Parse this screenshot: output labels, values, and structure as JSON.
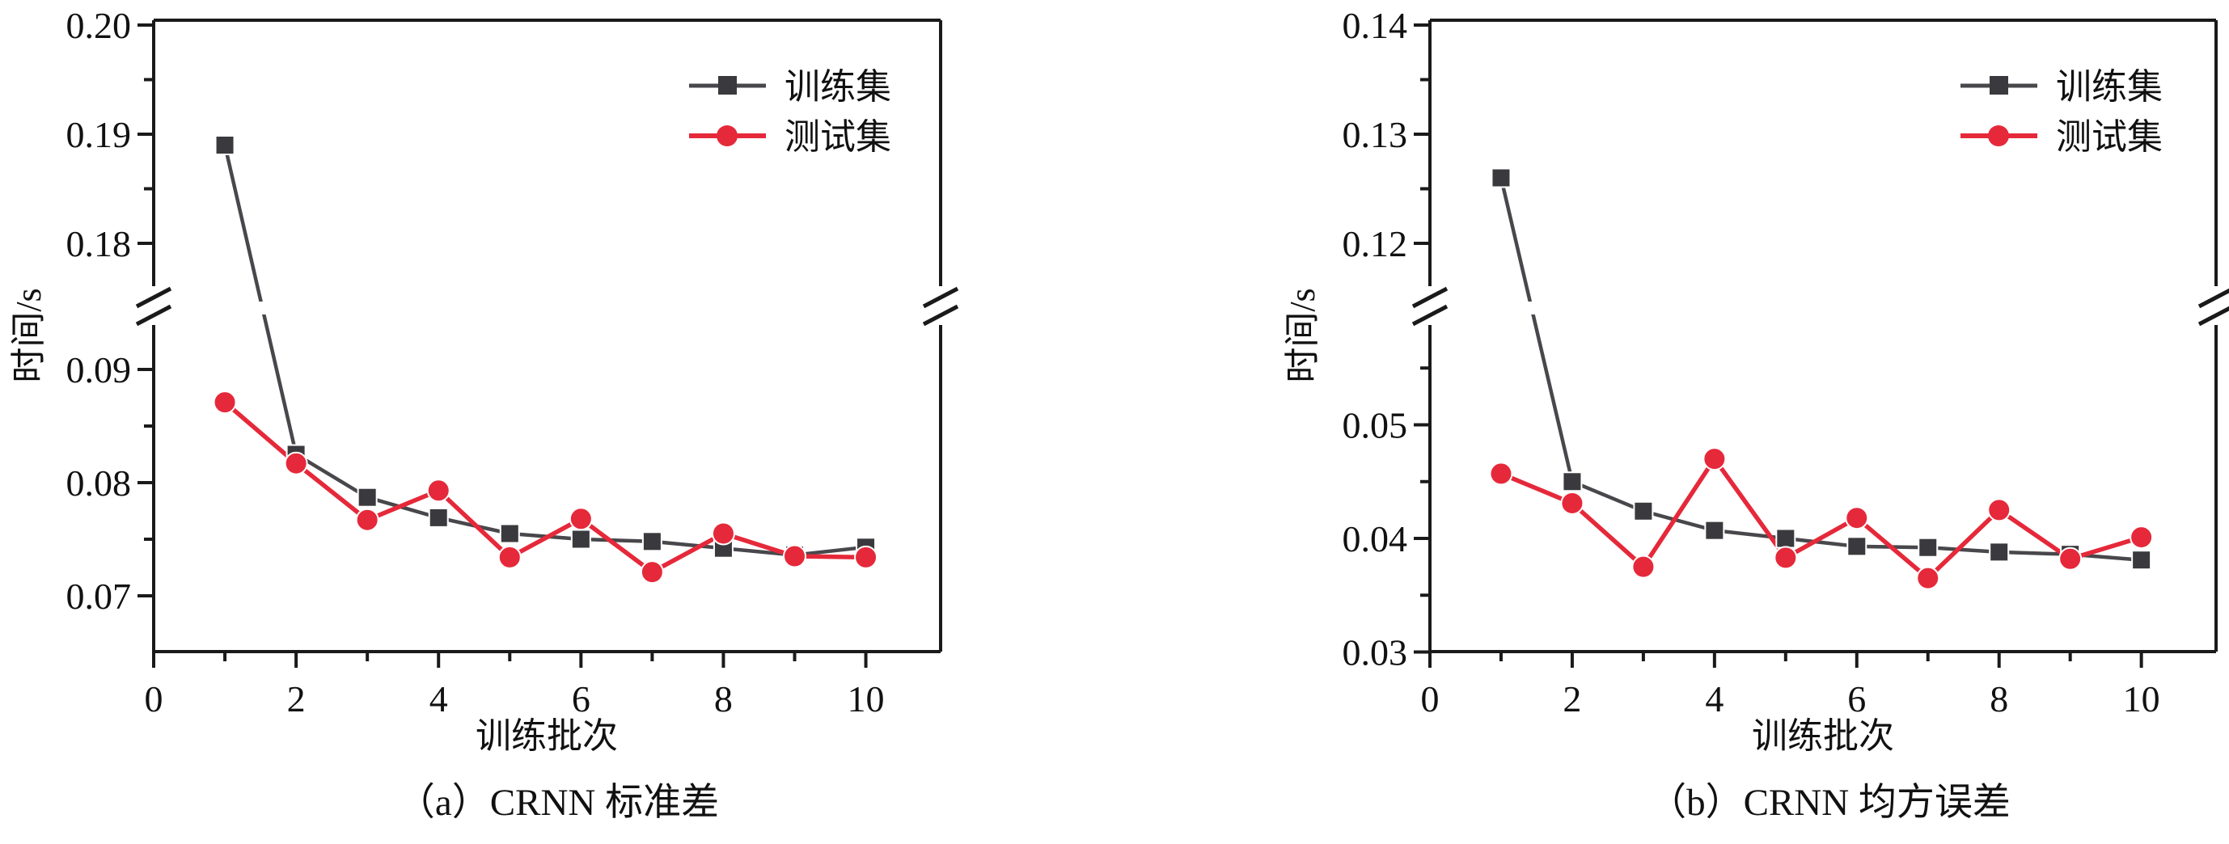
{
  "figure": {
    "background": "#ffffff",
    "axis_color": "#1a1a1a",
    "break_symbol": "double-slash",
    "panel_count": 2
  },
  "chart_data": [
    {
      "type": "line",
      "title": "（a）CRNN 标准差",
      "xlabel": "训练批次",
      "ylabel": "时间/s",
      "legend_position": "top-right",
      "x": [
        1,
        2,
        3,
        4,
        5,
        6,
        7,
        8,
        9,
        10
      ],
      "series": [
        {
          "name": "训练集",
          "marker": "square",
          "color": "#3a3a3e",
          "line_color": "#48484c",
          "values": [
            0.189,
            0.0825,
            0.0787,
            0.0769,
            0.0755,
            0.075,
            0.0748,
            0.0742,
            0.0736,
            0.0743
          ]
        },
        {
          "name": "测试集",
          "marker": "circle",
          "color": "#e5293a",
          "line_color": "#e5293a",
          "values": [
            0.0871,
            0.0817,
            0.0767,
            0.0793,
            0.0734,
            0.0768,
            0.0721,
            0.0755,
            0.0735,
            0.0734
          ]
        }
      ],
      "y_axis": {
        "broken": true,
        "upper_range": [
          0.176,
          0.2
        ],
        "lower_range": [
          0.065,
          0.094
        ],
        "upper_ticks": [
          {
            "v": 0.2,
            "label": "0.20"
          },
          {
            "v": 0.19,
            "label": "0.19"
          },
          {
            "v": 0.18,
            "label": "0.18"
          }
        ],
        "upper_minor_ticks": [
          0.195,
          0.185
        ],
        "lower_ticks": [
          {
            "v": 0.09,
            "label": "0.09"
          },
          {
            "v": 0.08,
            "label": "0.08"
          },
          {
            "v": 0.07,
            "label": "0.07"
          }
        ],
        "lower_minor_ticks": [
          0.085,
          0.075
        ]
      },
      "x_axis": {
        "range": [
          0,
          11.05
        ],
        "ticks": [
          {
            "v": 0,
            "label": "0"
          },
          {
            "v": 2,
            "label": "2"
          },
          {
            "v": 4,
            "label": "4"
          },
          {
            "v": 6,
            "label": "6"
          },
          {
            "v": 8,
            "label": "8"
          },
          {
            "v": 10,
            "label": "10"
          }
        ],
        "minor_ticks": [
          1,
          3,
          5,
          7,
          9
        ]
      }
    },
    {
      "type": "line",
      "title": "（b）CRNN 均方误差",
      "xlabel": "训练批次",
      "ylabel": "时间/s",
      "legend_position": "top-right",
      "x": [
        1,
        2,
        3,
        4,
        5,
        6,
        7,
        8,
        9,
        10
      ],
      "series": [
        {
          "name": "训练集",
          "marker": "square",
          "color": "#3a3a3e",
          "line_color": "#48484c",
          "values": [
            0.126,
            0.045,
            0.0424,
            0.0407,
            0.04,
            0.0393,
            0.0392,
            0.0388,
            0.0386,
            0.0381
          ]
        },
        {
          "name": "测试集",
          "marker": "circle",
          "color": "#e5293a",
          "line_color": "#e5293a",
          "values": [
            0.0457,
            0.0431,
            0.0375,
            0.047,
            0.0383,
            0.0418,
            0.0365,
            0.0425,
            0.0382,
            0.0401
          ]
        }
      ],
      "y_axis": {
        "broken": true,
        "upper_range": [
          0.117,
          0.14
        ],
        "lower_range": [
          0.03,
          0.059
        ],
        "upper_ticks": [
          {
            "v": 0.14,
            "label": "0.14"
          },
          {
            "v": 0.13,
            "label": "0.13"
          },
          {
            "v": 0.12,
            "label": "0.12"
          }
        ],
        "upper_minor_ticks": [
          0.135,
          0.125
        ],
        "lower_ticks": [
          {
            "v": 0.05,
            "label": "0.05"
          },
          {
            "v": 0.04,
            "label": "0.04"
          },
          {
            "v": 0.03,
            "label": "0.03"
          }
        ],
        "lower_minor_ticks": [
          0.055,
          0.045,
          0.035
        ]
      },
      "x_axis": {
        "range": [
          0,
          11.05
        ],
        "ticks": [
          {
            "v": 0,
            "label": "0"
          },
          {
            "v": 2,
            "label": "2"
          },
          {
            "v": 4,
            "label": "4"
          },
          {
            "v": 6,
            "label": "6"
          },
          {
            "v": 8,
            "label": "8"
          },
          {
            "v": 10,
            "label": "10"
          }
        ],
        "minor_ticks": [
          1,
          3,
          5,
          7,
          9
        ]
      }
    }
  ]
}
